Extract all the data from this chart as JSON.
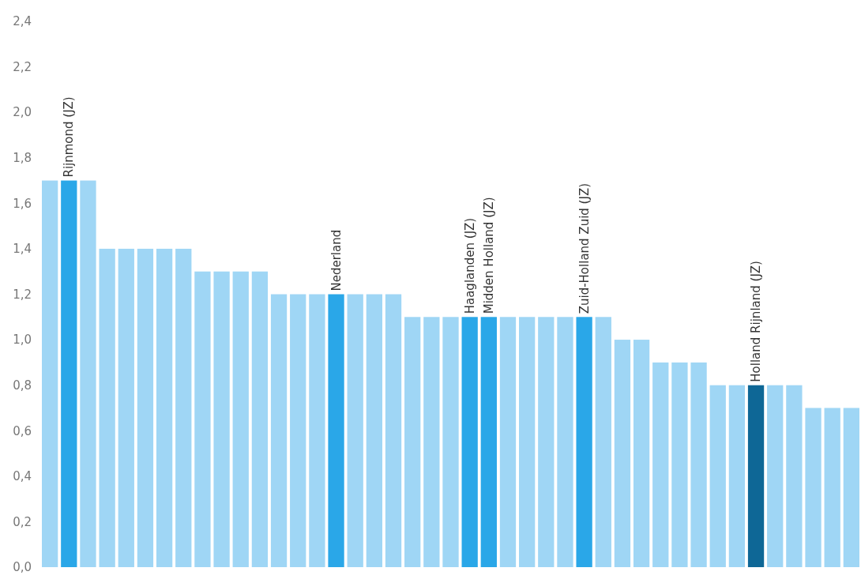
{
  "chart_data": {
    "type": "bar",
    "categories": [
      null,
      "Rijnmond (JZ)",
      null,
      null,
      null,
      null,
      null,
      null,
      null,
      null,
      null,
      null,
      null,
      null,
      null,
      "Nederland",
      null,
      null,
      null,
      null,
      null,
      null,
      "Haaglanden (JZ)",
      "Midden Holland (JZ)",
      null,
      null,
      null,
      null,
      "Zuid-Holland Zuid (JZ)",
      null,
      null,
      null,
      null,
      null,
      null,
      null,
      null,
      "Holland Rijnland (JZ)",
      null,
      null,
      null,
      null,
      null
    ],
    "values": [
      1.7,
      1.7,
      1.7,
      1.4,
      1.4,
      1.4,
      1.4,
      1.4,
      1.3,
      1.3,
      1.3,
      1.3,
      1.2,
      1.2,
      1.2,
      1.2,
      1.2,
      1.2,
      1.2,
      1.1,
      1.1,
      1.1,
      1.1,
      1.1,
      1.1,
      1.1,
      1.1,
      1.1,
      1.1,
      1.1,
      1.0,
      1.0,
      0.9,
      0.9,
      0.9,
      0.8,
      0.8,
      0.8,
      0.8,
      0.8,
      0.7,
      0.7,
      0.7
    ],
    "colors": [
      "#9fd6f5",
      "#2aa7e8",
      "#9fd6f5",
      "#9fd6f5",
      "#9fd6f5",
      "#9fd6f5",
      "#9fd6f5",
      "#9fd6f5",
      "#9fd6f5",
      "#9fd6f5",
      "#9fd6f5",
      "#9fd6f5",
      "#9fd6f5",
      "#9fd6f5",
      "#9fd6f5",
      "#2aa7e8",
      "#9fd6f5",
      "#9fd6f5",
      "#9fd6f5",
      "#9fd6f5",
      "#9fd6f5",
      "#9fd6f5",
      "#2aa7e8",
      "#2aa7e8",
      "#9fd6f5",
      "#9fd6f5",
      "#9fd6f5",
      "#9fd6f5",
      "#2aa7e8",
      "#9fd6f5",
      "#9fd6f5",
      "#9fd6f5",
      "#9fd6f5",
      "#9fd6f5",
      "#9fd6f5",
      "#9fd6f5",
      "#9fd6f5",
      "#0e6796",
      "#9fd6f5",
      "#9fd6f5",
      "#9fd6f5",
      "#9fd6f5",
      "#9fd6f5"
    ],
    "ylim": [
      0,
      2.4
    ],
    "yticks": [
      {
        "value": 0,
        "label": "0,0"
      },
      {
        "value": 0.2,
        "label": "0,2"
      },
      {
        "value": 0.4,
        "label": "0,4"
      },
      {
        "value": 0.6,
        "label": "0,6"
      },
      {
        "value": 0.8,
        "label": "0,8"
      },
      {
        "value": 1.0,
        "label": "1,0"
      },
      {
        "value": 1.2,
        "label": "1,2"
      },
      {
        "value": 1.4,
        "label": "1,4"
      },
      {
        "value": 1.6,
        "label": "1,6"
      },
      {
        "value": 1.8,
        "label": "1,8"
      },
      {
        "value": 2.0,
        "label": "2,0"
      },
      {
        "value": 2.2,
        "label": "2,2"
      },
      {
        "value": 2.4,
        "label": "2,4"
      }
    ],
    "tick_labels": "y"
  }
}
